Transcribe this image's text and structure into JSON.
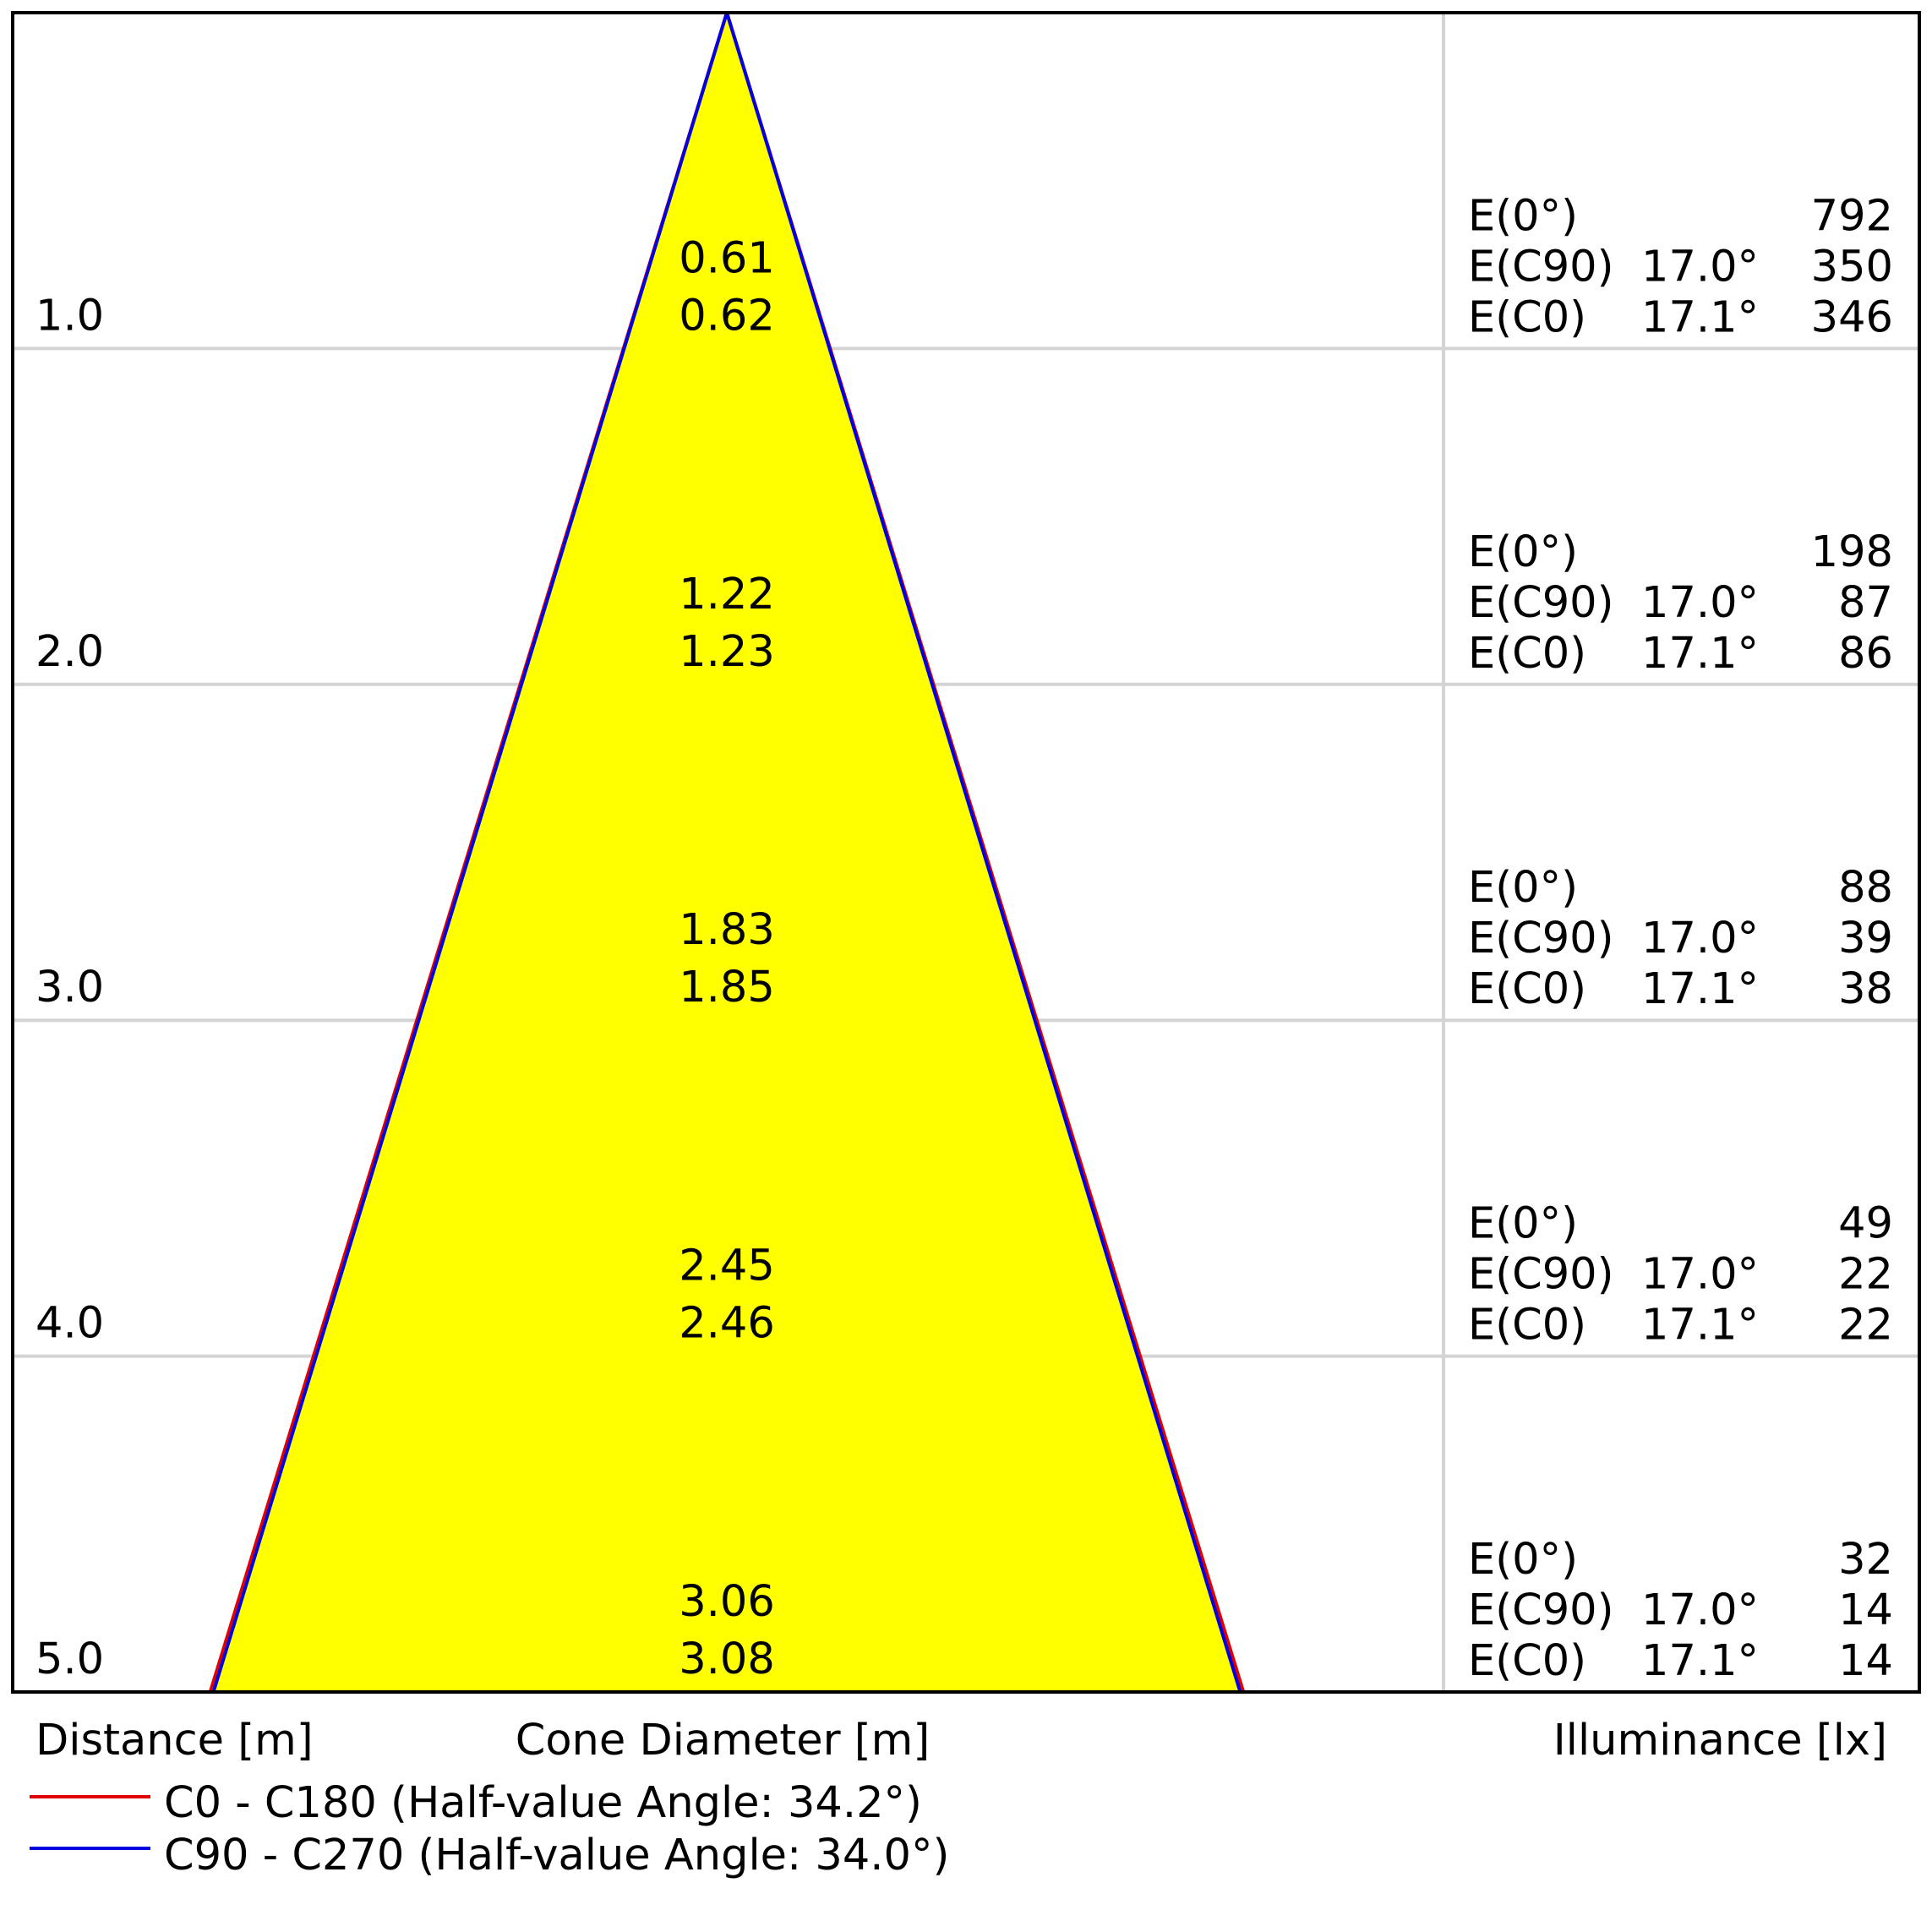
{
  "chart_data": {
    "type": "light-cone",
    "labels": {
      "distance": "Distance [m]",
      "cone_diameter": "Cone Diameter [m]",
      "illuminance": "Illuminance [lx]"
    },
    "colors": {
      "cone_fill": "#ffff00",
      "c0_line": "#e00000",
      "c90_line": "#0000e0",
      "grid": "#d4d4d4",
      "frame": "#000000"
    },
    "series": [
      {
        "name": "C0 - C180 (Half-value Angle: 34.2°)",
        "color": "#e00000",
        "half_value_angle": 34.2
      },
      {
        "name": "C90 - C270 (Half-value Angle: 34.0°)",
        "color": "#0000e0",
        "half_value_angle": 34.0
      }
    ],
    "distance_range": [
      0,
      5
    ],
    "rows": [
      {
        "distance": "1.0",
        "d_c90": "0.61",
        "d_c0": "0.62",
        "e0_label": "E(0°)",
        "e0": "792",
        "ec90_label": "E(C90)",
        "ec90_angle": "17.0°",
        "ec90": "350",
        "ec0_label": "E(C0)",
        "ec0_angle": "17.1°",
        "ec0": "346"
      },
      {
        "distance": "2.0",
        "d_c90": "1.22",
        "d_c0": "1.23",
        "e0_label": "E(0°)",
        "e0": "198",
        "ec90_label": "E(C90)",
        "ec90_angle": "17.0°",
        "ec90": "87",
        "ec0_label": "E(C0)",
        "ec0_angle": "17.1°",
        "ec0": "86"
      },
      {
        "distance": "3.0",
        "d_c90": "1.83",
        "d_c0": "1.85",
        "e0_label": "E(0°)",
        "e0": "88",
        "ec90_label": "E(C90)",
        "ec90_angle": "17.0°",
        "ec90": "39",
        "ec0_label": "E(C0)",
        "ec0_angle": "17.1°",
        "ec0": "38"
      },
      {
        "distance": "4.0",
        "d_c90": "2.45",
        "d_c0": "2.46",
        "e0_label": "E(0°)",
        "e0": "49",
        "ec90_label": "E(C90)",
        "ec90_angle": "17.0°",
        "ec90": "22",
        "ec0_label": "E(C0)",
        "ec0_angle": "17.1°",
        "ec0": "22"
      },
      {
        "distance": "5.0",
        "d_c90": "3.06",
        "d_c0": "3.08",
        "e0_label": "E(0°)",
        "e0": "32",
        "ec90_label": "E(C90)",
        "ec90_angle": "17.0°",
        "ec90": "14",
        "ec0_label": "E(C0)",
        "ec0_angle": "17.1°",
        "ec0": "14"
      }
    ]
  }
}
